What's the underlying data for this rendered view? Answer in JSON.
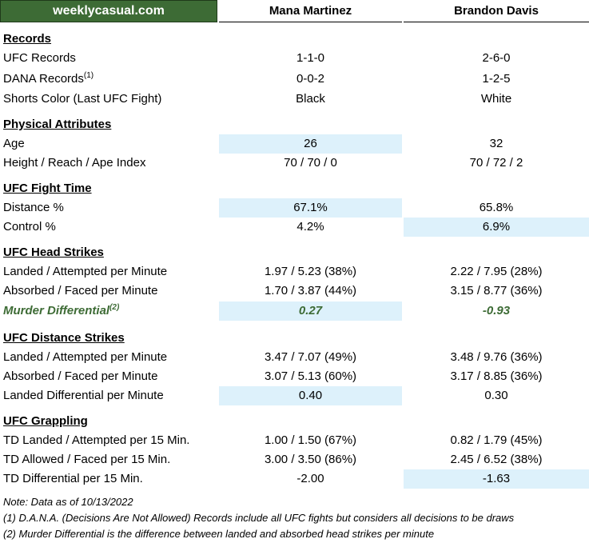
{
  "header": {
    "brand": "weeklycasual.com",
    "fighter1": "Mana Martinez",
    "fighter2": "Brandon Davis"
  },
  "sections": {
    "records": "Records",
    "physical": "Physical Attributes",
    "fight_time": "UFC Fight Time",
    "head_strikes": "UFC Head Strikes",
    "distance_strikes": "UFC Distance Strikes",
    "grappling": "UFC Grappling"
  },
  "rows": {
    "ufc_records": {
      "label": "UFC Records",
      "f1": "1-1-0",
      "f2": "2-6-0"
    },
    "dana_records": {
      "label": "DANA Records",
      "sup": "(1)",
      "f1": "0-0-2",
      "f2": "1-2-5"
    },
    "shorts": {
      "label": "Shorts Color (Last UFC Fight)",
      "f1": "Black",
      "f2": "White"
    },
    "age": {
      "label": "Age",
      "f1": "26",
      "f2": "32"
    },
    "height": {
      "label": "Height / Reach / Ape Index",
      "f1": "70 / 70 / 0",
      "f2": "70 / 72 / 2"
    },
    "distance_pct": {
      "label": "Distance %",
      "f1": "67.1%",
      "f2": "65.8%"
    },
    "control_pct": {
      "label": "Control %",
      "f1": "4.2%",
      "f2": "6.9%"
    },
    "head_landed": {
      "label": "Landed / Attempted per Minute",
      "f1": "1.97 / 5.23 (38%)",
      "f2": "2.22 / 7.95 (28%)"
    },
    "head_absorbed": {
      "label": "Absorbed / Faced per Minute",
      "f1": "1.70 / 3.87 (44%)",
      "f2": "3.15 / 8.77 (36%)"
    },
    "murder": {
      "label": "Murder Differential",
      "sup": "(2)",
      "f1": "0.27",
      "f2": "-0.93"
    },
    "dist_landed": {
      "label": "Landed / Attempted per Minute",
      "f1": "3.47 / 7.07 (49%)",
      "f2": "3.48 / 9.76 (36%)"
    },
    "dist_absorbed": {
      "label": "Absorbed / Faced per Minute",
      "f1": "3.07 / 5.13 (60%)",
      "f2": "3.17 / 8.85 (36%)"
    },
    "dist_diff": {
      "label": "Landed Differential per Minute",
      "f1": "0.40",
      "f2": "0.30"
    },
    "td_landed": {
      "label": "TD Landed / Attempted per 15 Min.",
      "f1": "1.00 / 1.50 (67%)",
      "f2": "0.82 / 1.79 (45%)"
    },
    "td_allowed": {
      "label": "TD Allowed / Faced per 15 Min.",
      "f1": "3.00 / 3.50 (86%)",
      "f2": "2.45 / 6.52 (38%)"
    },
    "td_diff": {
      "label": "TD Differential per 15 Min.",
      "f1": "-2.00",
      "f2": "-1.63"
    }
  },
  "notes": {
    "date": "Note: Data as of 10/13/2022",
    "n1": "(1) D.A.N.A. (Decisions Are Not Allowed) Records include all UFC fights but considers all decisions to be draws",
    "n2": "(2) Murder Differential is the difference between landed and absorbed head strikes per minute"
  },
  "colors": {
    "brand_green": "#3d6b35",
    "highlight_blue": "#ddf1fb"
  }
}
